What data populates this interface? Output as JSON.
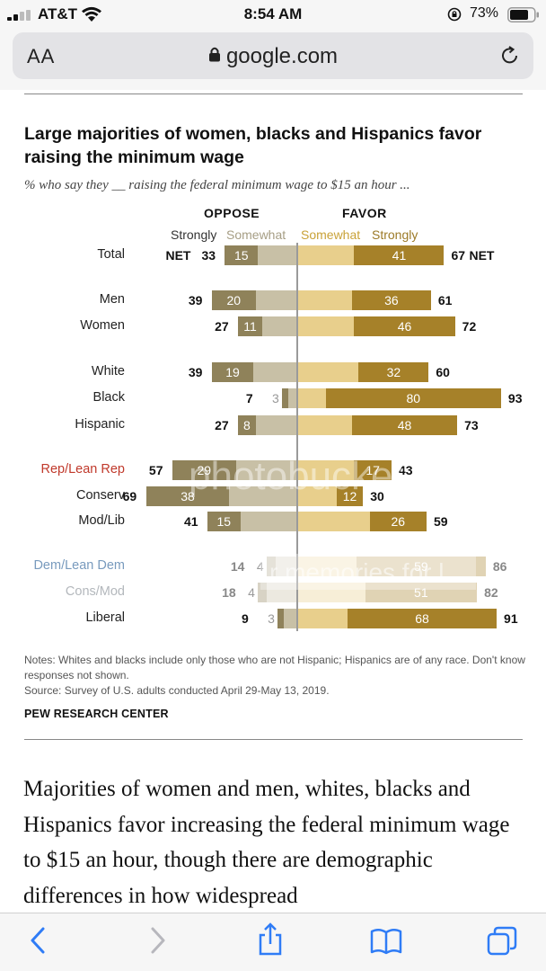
{
  "status_bar": {
    "carrier": "AT&T",
    "time": "8:54 AM",
    "battery": "73%"
  },
  "browser": {
    "text_size_label": "AA",
    "url": "google.com"
  },
  "chart": {
    "title": "Large majorities of women, blacks and Hispanics favor raising the minimum wage",
    "subtitle": "% who say they __ raising the federal minimum wage to $15 an hour ...",
    "oppose_header": "OPPOSE",
    "favor_header": "FAVOR",
    "legend": {
      "strongly_oppose": "Strongly",
      "somewhat_oppose": "Somewhat",
      "somewhat_favor": "Somewhat",
      "strongly_favor": "Strongly"
    },
    "net_prefix": "NET",
    "net_suffix": "NET",
    "colors": {
      "strongly_oppose": "#8f825a",
      "somewhat_oppose": "#c8c0a6",
      "somewhat_favor": "#e8cf8c",
      "strongly_favor": "#a68129",
      "rep_label": "#c0392b",
      "dem_label": "#4b79a8"
    },
    "watermark_text": "photobucket",
    "watermark_text_2": "r memories for l",
    "notes": "Notes: Whites and blacks include only those who are not Hispanic; Hispanics are of any race. Don't know responses not shown.",
    "source": "Source: Survey of U.S. adults conducted April 29-May 13, 2019.",
    "brand": "PEW RESEARCH CENTER"
  },
  "chart_data": {
    "type": "bar",
    "orientation": "horizontal-diverging",
    "categories": [
      "Total",
      "Men",
      "Women",
      "White",
      "Black",
      "Hispanic",
      "Rep/Lean Rep",
      "Conserv",
      "Mod/Lib",
      "Dem/Lean Dem",
      "Cons/Mod",
      "Liberal"
    ],
    "series": [
      {
        "name": "Oppose strongly",
        "values": [
          15,
          20,
          11,
          19,
          3,
          8,
          29,
          38,
          15,
          4,
          4,
          3
        ]
      },
      {
        "name": "Oppose NET",
        "values": [
          33,
          39,
          27,
          39,
          7,
          27,
          57,
          69,
          41,
          14,
          18,
          9
        ]
      },
      {
        "name": "Favor strongly",
        "values": [
          41,
          36,
          46,
          32,
          80,
          48,
          17,
          12,
          26,
          59,
          51,
          68
        ]
      },
      {
        "name": "Favor NET",
        "values": [
          67,
          61,
          72,
          60,
          93,
          73,
          43,
          30,
          59,
          86,
          82,
          91
        ]
      }
    ]
  },
  "article": {
    "paragraph": "Majorities of women and men, whites, blacks and Hispanics favor increasing the federal minimum wage to $15 an hour, though there are demographic differences in how widespread"
  }
}
